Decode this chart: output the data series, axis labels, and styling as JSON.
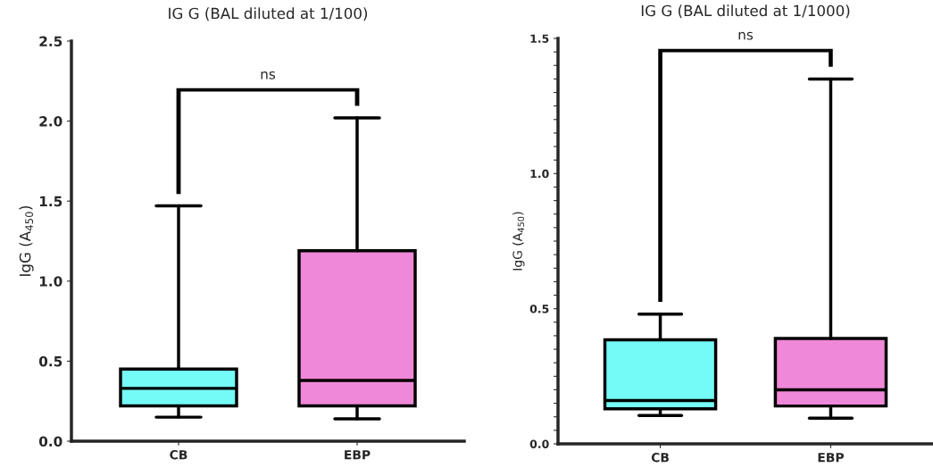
{
  "chart_data": [
    {
      "type": "box",
      "title": "IG G (BAL diluted at 1/100)",
      "ylabel": "IgG (A$_{450}$)",
      "categories": [
        "CB",
        "EBP"
      ],
      "colors": [
        "#74fbf7",
        "#ef88d8"
      ],
      "boxes": [
        {
          "low": 0.15,
          "q1": 0.22,
          "median": 0.33,
          "q3": 0.45,
          "high": 1.47
        },
        {
          "low": 0.14,
          "q1": 0.22,
          "median": 0.38,
          "q3": 1.19,
          "high": 2.02
        }
      ],
      "ylim": [
        0,
        2.5
      ],
      "yticks": [
        {
          "value": 0,
          "label": "0.0"
        },
        {
          "value": 0.5,
          "label": "0.5"
        },
        {
          "value": 1.0,
          "label": "1.0"
        },
        {
          "value": 1.5,
          "label": "1.5"
        },
        {
          "value": 2.0,
          "label": "2.0"
        },
        {
          "value": 2.5,
          "label": "2.5"
        }
      ],
      "annotations": [
        "ns"
      ]
    },
    {
      "type": "box",
      "title": "IG G (BAL diluted at 1/1000)",
      "ylabel": "IgG (A$_{450}$)",
      "categories": [
        "CB",
        "EBP"
      ],
      "colors": [
        "#74fbf7",
        "#ef88d8"
      ],
      "boxes": [
        {
          "low": 0.105,
          "q1": 0.13,
          "median": 0.16,
          "q3": 0.385,
          "high": 0.48
        },
        {
          "low": 0.095,
          "q1": 0.14,
          "median": 0.2,
          "q3": 0.39,
          "high": 1.35
        }
      ],
      "ylim": [
        0,
        1.5
      ],
      "yticks": [
        {
          "value": 0,
          "label": "0.0"
        },
        {
          "value": 0.05,
          "label": null
        },
        {
          "value": 0.1,
          "label": null
        },
        {
          "value": 0.15,
          "label": null
        },
        {
          "value": 0.2,
          "label": null
        },
        {
          "value": 0.25,
          "label": null
        },
        {
          "value": 0.3,
          "label": null
        },
        {
          "value": 0.35,
          "label": null
        },
        {
          "value": 0.4,
          "label": null
        },
        {
          "value": 0.45,
          "label": null
        },
        {
          "value": 0.5,
          "label": "0.5"
        },
        {
          "value": 0.55,
          "label": null
        },
        {
          "value": 0.6,
          "label": null
        },
        {
          "value": 0.65,
          "label": null
        },
        {
          "value": 0.7,
          "label": null
        },
        {
          "value": 0.75,
          "label": null
        },
        {
          "value": 0.8,
          "label": null
        },
        {
          "value": 0.85,
          "label": null
        },
        {
          "value": 0.9,
          "label": null
        },
        {
          "value": 0.95,
          "label": null
        },
        {
          "value": 1.0,
          "label": "1.0"
        },
        {
          "value": 1.05,
          "label": null
        },
        {
          "value": 1.1,
          "label": null
        },
        {
          "value": 1.15,
          "label": null
        },
        {
          "value": 1.2,
          "label": null
        },
        {
          "value": 1.25,
          "label": null
        },
        {
          "value": 1.3,
          "label": null
        },
        {
          "value": 1.35,
          "label": null
        },
        {
          "value": 1.4,
          "label": null
        },
        {
          "value": 1.45,
          "label": null
        },
        {
          "value": 1.5,
          "label": "1.5"
        }
      ],
      "annotations": [
        "ns"
      ]
    }
  ]
}
